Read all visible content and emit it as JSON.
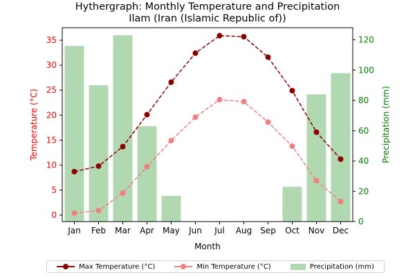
{
  "chart_data": {
    "type": "bar+line",
    "title": "Hythergraph: Monthly Temperature and Precipitation",
    "subtitle": "Ilam (Iran (Islamic Republic of))",
    "xlabel": "Month",
    "ylabel_left": "Temperature (°C)",
    "ylabel_right": "Precipitation (mm)",
    "categories": [
      "Jan",
      "Feb",
      "Mar",
      "Apr",
      "May",
      "Jun",
      "Jul",
      "Aug",
      "Sep",
      "Oct",
      "Nov",
      "Dec"
    ],
    "ylim_left": [
      -1.3,
      37.5
    ],
    "ylim_right": [
      0,
      128
    ],
    "yticks_left": [
      0,
      5,
      10,
      15,
      20,
      25,
      30,
      35
    ],
    "yticks_right": [
      0,
      20,
      40,
      60,
      80,
      100,
      120
    ],
    "series": [
      {
        "name": "Max Temperature (°C)",
        "kind": "line",
        "axis": "left",
        "color": "#8b0000",
        "dash": true,
        "values": [
          8.7,
          9.8,
          13.7,
          20.1,
          26.6,
          32.4,
          35.9,
          35.7,
          31.6,
          24.9,
          16.6,
          11.2
        ]
      },
      {
        "name": "Min Temperature (°C)",
        "kind": "line",
        "axis": "left",
        "color": "#f08080",
        "dash": true,
        "values": [
          0.4,
          0.9,
          4.4,
          9.7,
          14.9,
          19.6,
          23.1,
          22.7,
          18.6,
          13.8,
          6.9,
          2.7
        ]
      },
      {
        "name": "Precipitation (mm)",
        "kind": "bar",
        "axis": "right",
        "color": "#b2d8b2",
        "values": [
          116,
          90,
          123,
          63,
          17,
          0,
          0.3,
          0,
          0,
          23,
          84,
          98
        ]
      }
    ],
    "legend_position": "bottom",
    "colors": {
      "left_axis": "#ff0000",
      "right_axis": "#008000"
    }
  }
}
